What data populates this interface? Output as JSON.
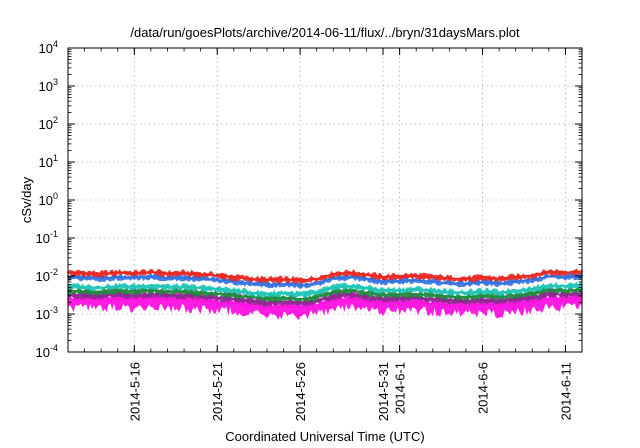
{
  "chart_data": {
    "type": "line",
    "title": "/data/run/goesPlots/archive/2014-06-11/flux/../bryn/31daysMars.plot",
    "xlabel": "Coordinated Universal Time (UTC)",
    "ylabel": "cSv/day",
    "yscale": "log",
    "ylim": [
      0.0001,
      10000
    ],
    "xlim": [
      "2014-05-12",
      "2014-06-12"
    ],
    "grid": true,
    "legend": "none",
    "y_ticks": [
      {
        "base": "10",
        "exp": "-4",
        "value": 0.0001
      },
      {
        "base": "10",
        "exp": "-3",
        "value": 0.001
      },
      {
        "base": "10",
        "exp": "-2",
        "value": 0.01
      },
      {
        "base": "10",
        "exp": "-1",
        "value": 0.1
      },
      {
        "base": "10",
        "exp": "0",
        "value": 1
      },
      {
        "base": "10",
        "exp": "1",
        "value": 10
      },
      {
        "base": "10",
        "exp": "2",
        "value": 100
      },
      {
        "base": "10",
        "exp": "3",
        "value": 1000
      },
      {
        "base": "10",
        "exp": "4",
        "value": 10000
      }
    ],
    "x_ticks": [
      {
        "label": "2014-5-16",
        "date": "2014-05-16"
      },
      {
        "label": "2014-5-21",
        "date": "2014-05-21"
      },
      {
        "label": "2014-5-26",
        "date": "2014-05-26"
      },
      {
        "label": "2014-5-31",
        "date": "2014-05-31"
      },
      {
        "label": "2014-6-1",
        "date": "2014-06-01"
      },
      {
        "label": "2014-6-6",
        "date": "2014-06-06"
      },
      {
        "label": "2014-6-11",
        "date": "2014-06-11"
      }
    ],
    "x": [
      "2014-05-12",
      "2014-05-13",
      "2014-05-14",
      "2014-05-15",
      "2014-05-16",
      "2014-05-17",
      "2014-05-18",
      "2014-05-19",
      "2014-05-20",
      "2014-05-21",
      "2014-05-22",
      "2014-05-23",
      "2014-05-24",
      "2014-05-25",
      "2014-05-26",
      "2014-05-27",
      "2014-05-28",
      "2014-05-29",
      "2014-05-30",
      "2014-05-31",
      "2014-06-01",
      "2014-06-02",
      "2014-06-03",
      "2014-06-04",
      "2014-06-05",
      "2014-06-06",
      "2014-06-07",
      "2014-06-08",
      "2014-06-09",
      "2014-06-10",
      "2014-06-11",
      "2014-06-12"
    ],
    "series": [
      {
        "color": "#e8211b",
        "values": [
          0.0125,
          0.012,
          0.0115,
          0.0125,
          0.012,
          0.0128,
          0.0118,
          0.012,
          0.0113,
          0.0105,
          0.0095,
          0.0085,
          0.008,
          0.0082,
          0.0078,
          0.0085,
          0.0115,
          0.0125,
          0.011,
          0.0095,
          0.01,
          0.0102,
          0.0095,
          0.0088,
          0.0085,
          0.0092,
          0.0085,
          0.0095,
          0.0105,
          0.013,
          0.0125,
          0.0135
        ]
      },
      {
        "color": "#2f6fe0",
        "values": [
          0.0095,
          0.009,
          0.0088,
          0.0095,
          0.0092,
          0.0098,
          0.009,
          0.009,
          0.0085,
          0.008,
          0.0072,
          0.0065,
          0.006,
          0.0062,
          0.0058,
          0.0065,
          0.0088,
          0.0095,
          0.0085,
          0.0072,
          0.0075,
          0.0078,
          0.0072,
          0.0066,
          0.0064,
          0.007,
          0.0064,
          0.0072,
          0.008,
          0.01,
          0.0095,
          0.0102
        ]
      },
      {
        "color": "#19c3b5",
        "values": [
          0.0055,
          0.0052,
          0.005,
          0.0055,
          0.0053,
          0.0057,
          0.0052,
          0.0052,
          0.0049,
          0.0046,
          0.0042,
          0.0037,
          0.0034,
          0.0036,
          0.0033,
          0.0037,
          0.0051,
          0.0055,
          0.0049,
          0.0042,
          0.0043,
          0.0045,
          0.0042,
          0.0038,
          0.0037,
          0.004,
          0.0037,
          0.0042,
          0.0046,
          0.0058,
          0.0055,
          0.0059
        ]
      },
      {
        "color": "#1d8a3b",
        "values": [
          0.0042,
          0.004,
          0.0038,
          0.0042,
          0.004,
          0.0043,
          0.004,
          0.004,
          0.0037,
          0.0035,
          0.0032,
          0.0028,
          0.0026,
          0.0027,
          0.0025,
          0.0028,
          0.0039,
          0.0042,
          0.0037,
          0.0032,
          0.0033,
          0.0034,
          0.0032,
          0.0029,
          0.0028,
          0.0031,
          0.0028,
          0.0032,
          0.0035,
          0.0044,
          0.0042,
          0.0045
        ]
      },
      {
        "color": "#8a2a8f",
        "values": [
          0.0033,
          0.0031,
          0.003,
          0.0033,
          0.0031,
          0.0034,
          0.0031,
          0.0031,
          0.0029,
          0.0027,
          0.0025,
          0.0022,
          0.002,
          0.0021,
          0.002,
          0.0022,
          0.003,
          0.0033,
          0.0029,
          0.0025,
          0.0026,
          0.0027,
          0.0025,
          0.0023,
          0.0022,
          0.0024,
          0.0022,
          0.0025,
          0.0027,
          0.0034,
          0.0033,
          0.0035
        ]
      },
      {
        "color": "#ff10e0",
        "values": [
          0.0025,
          0.0024,
          0.0023,
          0.0025,
          0.0024,
          0.0026,
          0.0024,
          0.0024,
          0.0022,
          0.0021,
          0.0019,
          0.0017,
          0.0015,
          0.0016,
          0.0015,
          0.0017,
          0.0023,
          0.0025,
          0.0022,
          0.0019,
          0.002,
          0.002,
          0.0019,
          0.0017,
          0.0017,
          0.0018,
          0.0017,
          0.0019,
          0.0021,
          0.0026,
          0.0025,
          0.0027
        ]
      }
    ]
  }
}
